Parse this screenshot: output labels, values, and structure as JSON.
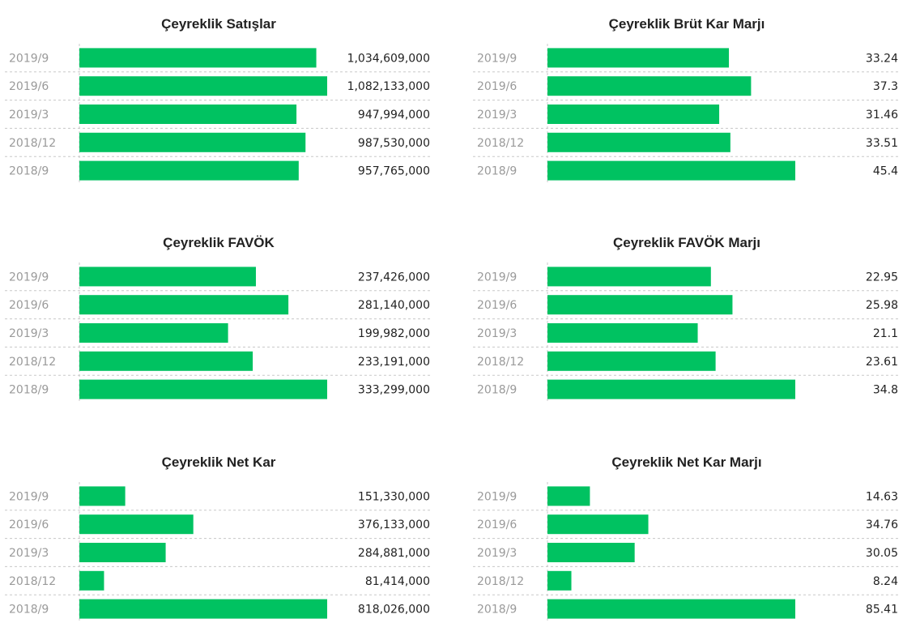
{
  "colors": {
    "bar": "#00c261",
    "grid": "#c8c8c8",
    "category_text": "#9a9a9a",
    "value_text": "#222222"
  },
  "chart_data": [
    {
      "type": "bar",
      "orientation": "horizontal",
      "title": "Çeyreklik Satışlar",
      "categories": [
        "2019/9",
        "2019/6",
        "2019/3",
        "2018/12",
        "2018/9"
      ],
      "values": [
        1034609000,
        1082133000,
        947994000,
        987530000,
        957765000
      ],
      "value_labels": [
        "1,034,609,000",
        "1,082,133,000",
        "947,994,000",
        "987,530,000",
        "957,765,000"
      ],
      "xlim": [
        0,
        1082133000
      ],
      "grid": true,
      "legend": "none"
    },
    {
      "type": "bar",
      "orientation": "horizontal",
      "title": "Çeyreklik Brüt Kar Marjı",
      "categories": [
        "2019/9",
        "2019/6",
        "2019/3",
        "2018/12",
        "2018/9"
      ],
      "values": [
        33.24,
        37.3,
        31.46,
        33.51,
        45.4
      ],
      "value_labels": [
        "33.24",
        "37.3",
        "31.46",
        "33.51",
        "45.4"
      ],
      "xlim": [
        0,
        45.4
      ],
      "grid": true,
      "legend": "none"
    },
    {
      "type": "bar",
      "orientation": "horizontal",
      "title": "Çeyreklik FAVÖK",
      "categories": [
        "2019/9",
        "2019/6",
        "2019/3",
        "2018/12",
        "2018/9"
      ],
      "values": [
        237426000,
        281140000,
        199982000,
        233191000,
        333299000
      ],
      "value_labels": [
        "237,426,000",
        "281,140,000",
        "199,982,000",
        "233,191,000",
        "333,299,000"
      ],
      "xlim": [
        0,
        333299000
      ],
      "grid": true,
      "legend": "none"
    },
    {
      "type": "bar",
      "orientation": "horizontal",
      "title": "Çeyreklik FAVÖK Marjı",
      "categories": [
        "2019/9",
        "2019/6",
        "2019/3",
        "2018/12",
        "2018/9"
      ],
      "values": [
        22.95,
        25.98,
        21.1,
        23.61,
        34.8
      ],
      "value_labels": [
        "22.95",
        "25.98",
        "21.1",
        "23.61",
        "34.8"
      ],
      "xlim": [
        0,
        34.8
      ],
      "grid": true,
      "legend": "none"
    },
    {
      "type": "bar",
      "orientation": "horizontal",
      "title": "Çeyreklik Net Kar",
      "categories": [
        "2019/9",
        "2019/6",
        "2019/3",
        "2018/12",
        "2018/9"
      ],
      "values": [
        151330000,
        376133000,
        284881000,
        81414000,
        818026000
      ],
      "value_labels": [
        "151,330,000",
        "376,133,000",
        "284,881,000",
        "81,414,000",
        "818,026,000"
      ],
      "xlim": [
        0,
        818026000
      ],
      "grid": true,
      "legend": "none"
    },
    {
      "type": "bar",
      "orientation": "horizontal",
      "title": "Çeyreklik Net Kar Marjı",
      "categories": [
        "2019/9",
        "2019/6",
        "2019/3",
        "2018/12",
        "2018/9"
      ],
      "values": [
        14.63,
        34.76,
        30.05,
        8.24,
        85.41
      ],
      "value_labels": [
        "14.63",
        "34.76",
        "30.05",
        "8.24",
        "85.41"
      ],
      "xlim": [
        0,
        85.41
      ],
      "grid": true,
      "legend": "none"
    }
  ]
}
